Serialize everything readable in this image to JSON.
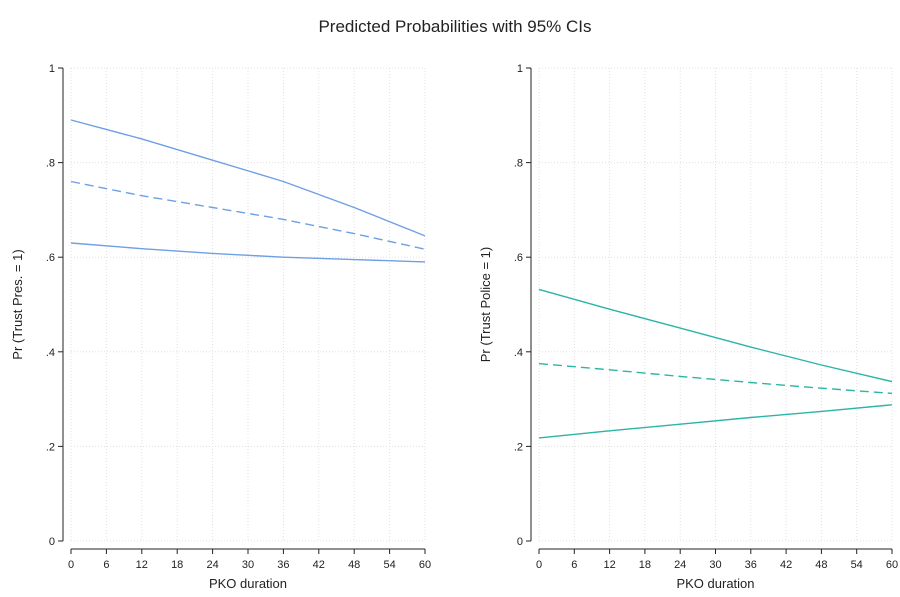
{
  "title": "Predicted Probabilities with 95% CIs",
  "chart_data": [
    {
      "type": "line",
      "title": "",
      "xlabel": "PKO duration",
      "ylabel": "Pr (Trust Pres. = 1)",
      "xlim": [
        0,
        60
      ],
      "ylim": [
        0,
        1
      ],
      "xticks": [
        0,
        6,
        12,
        18,
        24,
        30,
        36,
        42,
        48,
        54,
        60
      ],
      "xtick_labels": [
        "0",
        "6",
        "12",
        "18",
        "24",
        "30",
        "36",
        "42",
        "48",
        "54",
        "60"
      ],
      "yticks": [
        0,
        0.2,
        0.4,
        0.6,
        0.8,
        1
      ],
      "ytick_labels": [
        "0",
        ".2",
        ".4",
        ".6",
        ".8",
        "1"
      ],
      "grid": true,
      "x": [
        0,
        12,
        24,
        36,
        48,
        60
      ],
      "series": [
        {
          "role": "upper_ci",
          "style": "solid",
          "color": "#6f9fe6",
          "values": [
            0.89,
            0.85,
            0.805,
            0.76,
            0.705,
            0.645
          ]
        },
        {
          "role": "estimate",
          "style": "dashed",
          "color": "#6f9fe6",
          "values": [
            0.76,
            0.73,
            0.705,
            0.68,
            0.65,
            0.617
          ]
        },
        {
          "role": "lower_ci",
          "style": "solid",
          "color": "#6f9fe6",
          "values": [
            0.63,
            0.618,
            0.608,
            0.6,
            0.595,
            0.59
          ]
        }
      ]
    },
    {
      "type": "line",
      "title": "",
      "xlabel": "PKO duration",
      "ylabel": "Pr (Trust Police = 1)",
      "xlim": [
        0,
        60
      ],
      "ylim": [
        0,
        1
      ],
      "xticks": [
        0,
        6,
        12,
        18,
        24,
        30,
        36,
        42,
        48,
        54,
        60
      ],
      "xtick_labels": [
        "0",
        "6",
        "12",
        "18",
        "24",
        "30",
        "36",
        "42",
        "48",
        "54",
        "60"
      ],
      "yticks": [
        0,
        0.2,
        0.4,
        0.6,
        0.8,
        1
      ],
      "ytick_labels": [
        "0",
        ".2",
        ".4",
        ".6",
        ".8",
        "1"
      ],
      "grid": true,
      "x": [
        0,
        12,
        24,
        36,
        48,
        60
      ],
      "series": [
        {
          "role": "upper_ci",
          "style": "solid",
          "color": "#2bb5a6",
          "values": [
            0.532,
            0.49,
            0.45,
            0.41,
            0.372,
            0.337
          ]
        },
        {
          "role": "estimate",
          "style": "dashed",
          "color": "#2bb5a6",
          "values": [
            0.375,
            0.362,
            0.348,
            0.335,
            0.323,
            0.312
          ]
        },
        {
          "role": "lower_ci",
          "style": "solid",
          "color": "#2bb5a6",
          "values": [
            0.218,
            0.233,
            0.247,
            0.261,
            0.274,
            0.288
          ]
        }
      ]
    }
  ]
}
